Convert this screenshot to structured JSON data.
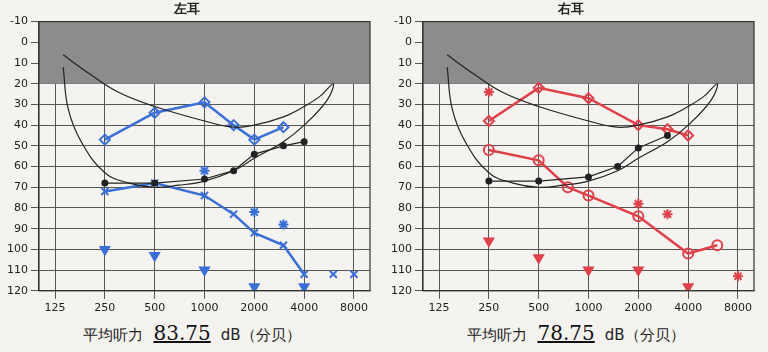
{
  "chart_data": [
    {
      "type": "line",
      "title": "左耳",
      "log": "x",
      "grid": true,
      "xlim": [
        100,
        10000
      ],
      "xticks": [
        125,
        250,
        500,
        1000,
        2000,
        4000,
        8000
      ],
      "ylim": [
        -10,
        120
      ],
      "yticks": [
        -10,
        0,
        10,
        20,
        30,
        40,
        50,
        60,
        70,
        80,
        90,
        100,
        110,
        120
      ],
      "shaded_range": [
        -10,
        20
      ],
      "average_label": "平均听力",
      "average_value": 83.75,
      "average_unit": "dB（分贝）",
      "series": [
        {
          "color": "#222222",
          "marker": "none",
          "line_style": "smooth",
          "x": [
            140,
            200,
            300,
            500,
            1000,
            1500,
            2000,
            3000,
            4000,
            5000,
            6000,
            5500,
            4000,
            3000,
            2000,
            1500,
            1000,
            700,
            500,
            350,
            250,
            180,
            150,
            140
          ],
          "values": [
            6,
            15,
            24,
            31,
            38,
            41,
            40,
            36,
            31,
            26,
            20,
            28,
            40,
            48,
            56,
            62,
            67,
            69,
            70,
            68,
            63,
            48,
            32,
            12
          ]
        },
        {
          "color": "#222222",
          "marker": "circle",
          "line_style": "solid",
          "x": [
            250,
            500,
            1000,
            1500,
            2000,
            3000,
            4000
          ],
          "values": [
            68,
            68,
            66,
            62,
            54,
            50,
            48
          ]
        },
        {
          "color": "#3a6fd8",
          "marker": "bracket",
          "line_style": "solid",
          "x": [
            250,
            500,
            1000,
            1500,
            2000,
            3000
          ],
          "values": [
            47,
            34,
            29,
            40,
            47,
            41
          ]
        },
        {
          "color": "#3a6fd8",
          "marker": "cross",
          "line_style": "solid",
          "x": [
            250,
            500,
            1000,
            1500,
            2000,
            3000,
            4000
          ],
          "values": [
            72,
            68,
            74,
            83,
            92,
            98,
            112
          ]
        },
        {
          "color": "#3a6fd8",
          "marker": "cross",
          "line_style": "none",
          "x": [
            6000,
            8000
          ],
          "values": [
            112,
            112
          ]
        },
        {
          "color": "#3a6fd8",
          "marker": "check",
          "line_style": "none",
          "x": [
            250,
            500,
            1000,
            2000,
            4000
          ],
          "values": [
            100,
            103,
            110,
            118,
            118
          ]
        },
        {
          "color": "#3a6fd8",
          "marker": "arrow",
          "line_style": "none",
          "x": [
            1000,
            2000,
            3000
          ],
          "values": [
            62,
            82,
            88
          ]
        }
      ]
    },
    {
      "type": "line",
      "title": "右耳",
      "log": "x",
      "grid": true,
      "xlim": [
        100,
        10000
      ],
      "xticks": [
        125,
        250,
        500,
        1000,
        2000,
        4000,
        8000
      ],
      "ylim": [
        -10,
        120
      ],
      "yticks": [
        -10,
        0,
        10,
        20,
        30,
        40,
        50,
        60,
        70,
        80,
        90,
        100,
        110,
        120
      ],
      "shaded_range": [
        -10,
        20
      ],
      "average_label": "平均听力",
      "average_value": 78.75,
      "average_unit": "dB（分贝）",
      "series": [
        {
          "color": "#222222",
          "marker": "none",
          "line_style": "smooth",
          "x": [
            140,
            200,
            300,
            500,
            1000,
            1500,
            2000,
            3000,
            4000,
            5000,
            6000,
            5500,
            4000,
            3000,
            2000,
            1500,
            1000,
            700,
            500,
            350,
            250,
            180,
            150,
            140
          ],
          "values": [
            6,
            15,
            24,
            31,
            38,
            41,
            40,
            36,
            31,
            26,
            20,
            28,
            40,
            48,
            56,
            62,
            67,
            69,
            70,
            68,
            63,
            48,
            32,
            12
          ]
        },
        {
          "color": "#222222",
          "marker": "circle",
          "line_style": "solid",
          "x": [
            250,
            500,
            1000,
            1500,
            2000,
            3000
          ],
          "values": [
            67,
            67,
            65,
            60,
            51,
            45
          ]
        },
        {
          "color": "#e0404a",
          "marker": "bracket",
          "line_style": "solid",
          "x": [
            250,
            500,
            1000,
            2000,
            3000,
            4000
          ],
          "values": [
            38,
            22,
            27,
            40,
            42,
            45
          ]
        },
        {
          "color": "#e0404a",
          "marker": "circle_open",
          "line_style": "solid",
          "x": [
            250,
            500,
            750,
            1000,
            2000,
            4000,
            6000
          ],
          "values": [
            52,
            57,
            70,
            74,
            84,
            102,
            98
          ]
        },
        {
          "color": "#e0404a",
          "marker": "check",
          "line_style": "none",
          "x": [
            250,
            500,
            1000,
            2000,
            4000
          ],
          "values": [
            96,
            104,
            110,
            110,
            118
          ]
        },
        {
          "color": "#e0404a",
          "marker": "arrow",
          "line_style": "none",
          "x": [
            250,
            2000,
            3000,
            8000
          ],
          "values": [
            24,
            78,
            83,
            113
          ]
        }
      ]
    }
  ]
}
